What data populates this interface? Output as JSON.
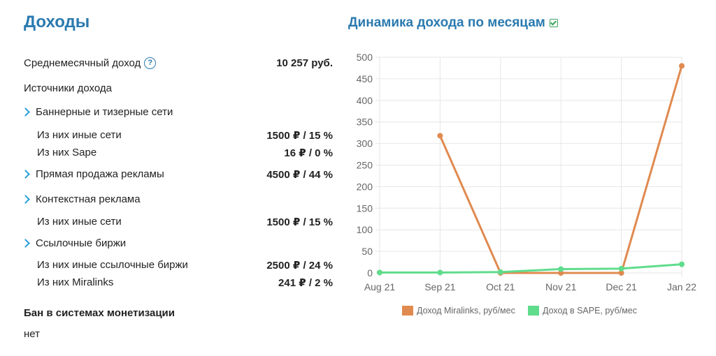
{
  "income": {
    "title": "Доходы",
    "avg_label": "Среднемесячный доход",
    "avg_value": "10 257 руб.",
    "sources_label": "Источники дохода",
    "rows": [
      {
        "label": "Баннерные и тизерные сети",
        "value": "",
        "kind": "section"
      },
      {
        "label": "Из них иные сети",
        "value": "1500 ₽  / 15 %",
        "kind": "sub"
      },
      {
        "label": "Из них Sape",
        "value": "16 ₽  / 0 %",
        "kind": "sub"
      },
      {
        "label": "Прямая продажа рекламы",
        "value": "4500 ₽  / 44 %",
        "kind": "section"
      },
      {
        "label": "Контекстная реклама",
        "value": "",
        "kind": "section"
      },
      {
        "label": "Из них иные сети",
        "value": "1500 ₽  / 15 %",
        "kind": "sub"
      },
      {
        "label": "Ссылочные биржи",
        "value": "",
        "kind": "section"
      },
      {
        "label": "Из них иные ссылочные биржи",
        "value": "2500 ₽  / 24 %",
        "kind": "sub"
      },
      {
        "label": "Из них Miralinks",
        "value": "241 ₽  / 2 %",
        "kind": "sub"
      }
    ],
    "ban_label": "Бан в системах монетизации",
    "ban_value": "нет"
  },
  "chart_data": {
    "type": "line",
    "title": "Динамика дохода по месяцам",
    "categories": [
      "Aug 21",
      "Sep 21",
      "Oct 21",
      "Nov 21",
      "Dec 21",
      "Jan 22"
    ],
    "ylim": [
      0,
      500
    ],
    "yticks": [
      "0",
      "50",
      "100",
      "150",
      "200",
      "250",
      "300",
      "350",
      "400",
      "450",
      "500"
    ],
    "grid": true,
    "legend_position": "bottom",
    "series": [
      {
        "name": "Доход Miralinks, руб/мес",
        "color": "#e08a4f",
        "values": [
          null,
          318,
          0,
          0,
          0,
          480
        ]
      },
      {
        "name": "Доход в SAPE, руб/мес",
        "color": "#5fdc8c",
        "values": [
          1,
          1,
          2,
          9,
          10,
          20
        ]
      }
    ]
  }
}
